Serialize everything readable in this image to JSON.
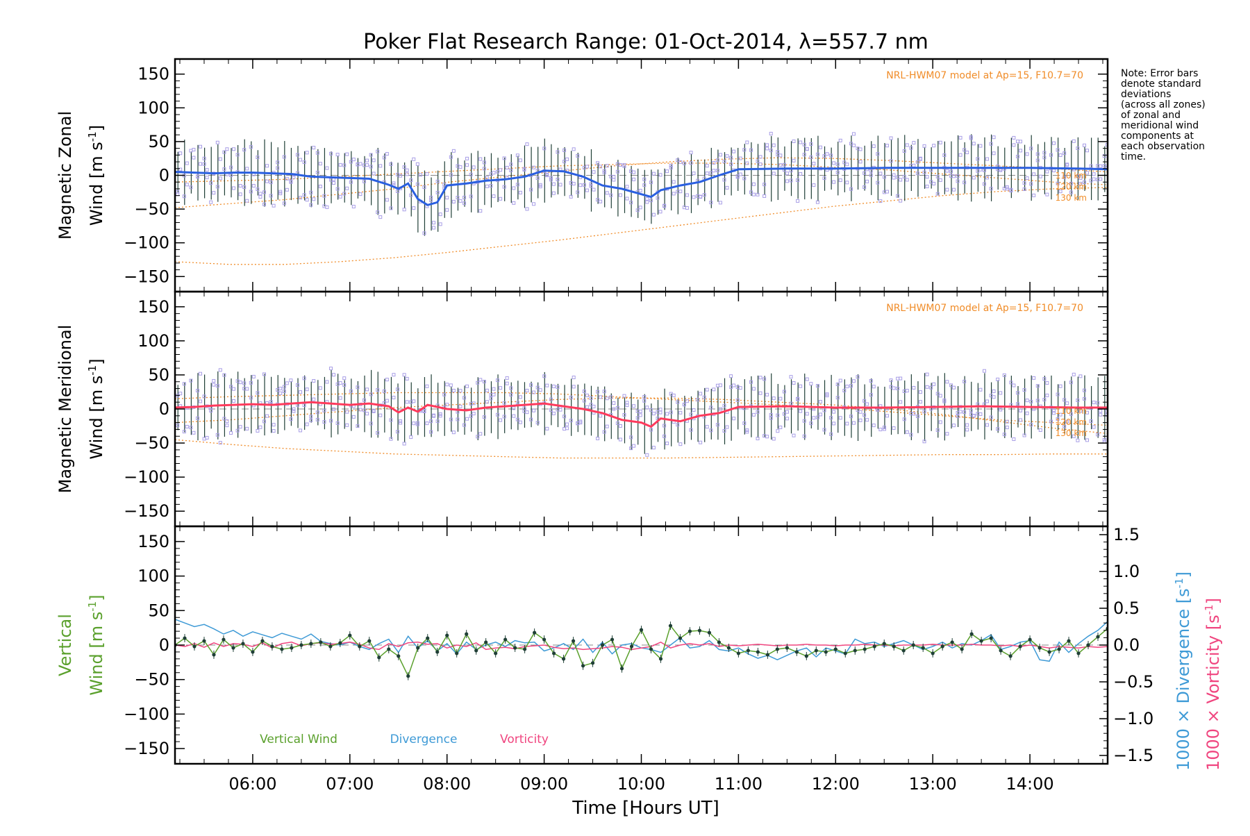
{
  "title": "Poker Flat Research Range: 01-Oct-2014, λ=557.7 nm",
  "note": [
    "Note: Error bars",
    "denote standard",
    "deviations",
    "(across all zones)",
    "of zonal and",
    "meridional wind",
    "components at",
    "each observation",
    "time."
  ],
  "xaxis": {
    "label": "Time [Hours UT]",
    "ticks": [
      "06:00",
      "07:00",
      "08:00",
      "09:00",
      "10:00",
      "11:00",
      "12:00",
      "13:00",
      "14:00"
    ],
    "range_hours": [
      5.2,
      14.8
    ]
  },
  "colors": {
    "zonal": "#2a5fe0",
    "meridional": "#ff3a5c",
    "vertical": "#5aa02c",
    "divergence": "#3e9ad6",
    "vorticity": "#f0457f",
    "model": "#f08c28",
    "zone_points": "#a89ee6"
  },
  "panels": {
    "zonal": {
      "ylabel_line1": "Magnetic Zonal",
      "ylabel_line2": "Wind [m s",
      "ylabel_sup": "-1",
      "ylabel_close": "]",
      "model_label": "NRL-HWM07 model at Ap=15, F10.7=70",
      "altitudes": [
        "110 km",
        "120 km",
        "130 km"
      ]
    },
    "meridional": {
      "ylabel_line1": "Magnetic Meridional",
      "ylabel_line2": "Wind [m s",
      "ylabel_sup": "-1",
      "ylabel_close": "]",
      "model_label": "NRL-HWM07 model at Ap=15, F10.7=70",
      "altitudes": [
        "110 km",
        "120 km",
        "130 km"
      ]
    },
    "vertical": {
      "ylabel_line1": "Vertical",
      "ylabel_line2": "Wind [m s",
      "ylabel_sup": "-1",
      "ylabel_close": "]",
      "right_label_div": "1000 × Divergence [s",
      "right_label_vort": "1000 × Vorticity [s",
      "right_sup": "-1",
      "right_close": "]",
      "right_ticks": [
        "1.5",
        "1.0",
        "0.5",
        "0.0",
        "−0.5",
        "−1.0",
        "−1.5"
      ],
      "legend": [
        "Vertical Wind",
        "Divergence",
        "Vorticity"
      ]
    }
  },
  "yticks": [
    "150",
    "100",
    "50",
    "0",
    "−50",
    "−100",
    "−150"
  ],
  "chart_data": [
    {
      "type": "line",
      "name": "zonal",
      "x_hours": [
        5.2,
        5.4,
        5.6,
        5.8,
        6.0,
        6.2,
        6.4,
        6.6,
        6.8,
        7.0,
        7.2,
        7.4,
        7.5,
        7.6,
        7.7,
        7.8,
        7.9,
        8.0,
        8.2,
        8.4,
        8.6,
        8.8,
        9.0,
        9.2,
        9.4,
        9.6,
        9.8,
        10.0,
        10.1,
        10.2,
        10.4,
        10.6,
        10.8,
        11.0,
        11.5,
        12.0,
        12.5,
        13.0,
        13.5,
        14.0,
        14.5,
        14.8
      ],
      "y": [
        5,
        4,
        3,
        4,
        4,
        3,
        2,
        -2,
        -3,
        -4,
        -5,
        -14,
        -20,
        -12,
        -35,
        -44,
        -40,
        -15,
        -12,
        -8,
        -6,
        -2,
        7,
        6,
        -2,
        -15,
        -20,
        -28,
        -32,
        -22,
        -15,
        -10,
        0,
        9,
        10,
        10,
        11,
        11,
        11,
        11,
        10,
        9
      ],
      "ylim": [
        -160,
        160
      ],
      "model_110km": [
        -48,
        -42,
        -36,
        -28,
        -20,
        -10,
        -2,
        6,
        14,
        20,
        24,
        26,
        25,
        22,
        18,
        14,
        10,
        5
      ],
      "model_120km": [
        -10,
        -8,
        -6,
        -2,
        2,
        6,
        10,
        14,
        16,
        18,
        18,
        16,
        12,
        8,
        2,
        -4,
        -10,
        -14
      ],
      "model_130km": [
        -128,
        -132,
        -132,
        -128,
        -122,
        -114,
        -105,
        -96,
        -86,
        -76,
        -66,
        -56,
        -46,
        -38,
        -30,
        -24,
        -20,
        -18
      ]
    },
    {
      "type": "line",
      "name": "meridional",
      "x_hours": [
        5.2,
        5.4,
        5.6,
        5.8,
        6.0,
        6.2,
        6.4,
        6.6,
        6.8,
        7.0,
        7.2,
        7.4,
        7.5,
        7.6,
        7.7,
        7.8,
        8.0,
        8.2,
        8.4,
        8.6,
        8.8,
        9.0,
        9.2,
        9.4,
        9.6,
        9.8,
        10.0,
        10.1,
        10.2,
        10.4,
        10.6,
        10.8,
        11.0,
        11.5,
        12.0,
        12.5,
        13.0,
        13.5,
        14.0,
        14.5,
        14.8
      ],
      "y": [
        2,
        3,
        5,
        6,
        7,
        6,
        8,
        10,
        8,
        6,
        8,
        4,
        -5,
        2,
        -4,
        6,
        0,
        -2,
        2,
        4,
        6,
        8,
        4,
        0,
        -6,
        -16,
        -20,
        -26,
        -14,
        -18,
        -10,
        -6,
        3,
        4,
        2,
        2,
        3,
        4,
        3,
        2,
        2
      ],
      "ylim": [
        -160,
        160
      ],
      "model_110km": [
        15,
        18,
        20,
        22,
        24,
        24,
        24,
        22,
        18,
        14,
        10,
        6,
        2,
        -4,
        -10,
        -16,
        -20,
        -24
      ],
      "model_120km": [
        -20,
        -16,
        -10,
        -4,
        2,
        6,
        10,
        14,
        16,
        16,
        14,
        10,
        6,
        0,
        -8,
        -18,
        -28,
        -36
      ],
      "model_130km": [
        -45,
        -52,
        -58,
        -62,
        -66,
        -68,
        -70,
        -72,
        -72,
        -72,
        -71,
        -70,
        -69,
        -68,
        -67,
        -67,
        -66,
        -66
      ]
    },
    {
      "type": "line",
      "name": "vertical",
      "x_hours": [
        5.2,
        5.3,
        5.4,
        5.5,
        5.6,
        5.7,
        5.8,
        5.9,
        6.0,
        6.1,
        6.2,
        6.3,
        6.4,
        6.5,
        6.6,
        6.7,
        6.8,
        6.9,
        7.0,
        7.1,
        7.2,
        7.3,
        7.4,
        7.5,
        7.6,
        7.7,
        7.8,
        7.9,
        8.0,
        8.1,
        8.2,
        8.3,
        8.4,
        8.5,
        8.6,
        8.7,
        8.8,
        8.9,
        9.0,
        9.1,
        9.2,
        9.3,
        9.4,
        9.5,
        9.6,
        9.7,
        9.8,
        9.9,
        10.0,
        10.1,
        10.2,
        10.3,
        10.4,
        10.5,
        10.6,
        10.7,
        10.8,
        10.9,
        11.0,
        11.1,
        11.2,
        11.3,
        11.4,
        11.5,
        11.6,
        11.7,
        11.8,
        11.9,
        12.0,
        12.1,
        12.2,
        12.3,
        12.4,
        12.5,
        12.6,
        12.7,
        12.8,
        12.9,
        13.0,
        13.1,
        13.2,
        13.3,
        13.4,
        13.5,
        13.6,
        13.7,
        13.8,
        13.9,
        14.0,
        14.1,
        14.2,
        14.3,
        14.4,
        14.5,
        14.6,
        14.7,
        14.8
      ],
      "y": [
        0,
        10,
        -2,
        6,
        -14,
        8,
        -4,
        2,
        -10,
        6,
        -2,
        -6,
        -4,
        0,
        2,
        4,
        -2,
        3,
        14,
        -2,
        6,
        -18,
        -6,
        -16,
        -45,
        -4,
        10,
        -10,
        14,
        -12,
        16,
        -8,
        4,
        -12,
        8,
        -4,
        -6,
        18,
        8,
        -12,
        -20,
        6,
        -30,
        -26,
        0,
        8,
        -34,
        -2,
        22,
        -6,
        -20,
        28,
        10,
        20,
        21,
        18,
        4,
        -4,
        -12,
        -8,
        -10,
        -14,
        -6,
        -4,
        -10,
        -16,
        -8,
        -10,
        -6,
        -12,
        -8,
        -6,
        -2,
        2,
        -2,
        -8,
        0,
        -4,
        -12,
        -2,
        4,
        -6,
        16,
        6,
        10,
        -8,
        -16,
        -2,
        8,
        -4,
        -10,
        -6,
        6,
        -12,
        0,
        12,
        24
      ],
      "ylim": [
        -160,
        160
      ],
      "divergence": [
        0.35,
        0.3,
        0.25,
        0.28,
        0.22,
        0.15,
        0.2,
        0.12,
        0.18,
        0.14,
        0.1,
        0.16,
        0.12,
        0.08,
        0.15,
        0.05,
        0.02,
        0.0,
        0.04,
        -0.02,
        -0.06,
        0.02,
        0.08,
        -0.1,
        0.12,
        -0.04,
        0.06,
        -0.08,
        0.02,
        -0.12,
        0.04,
        -0.06,
        0.0,
        0.04,
        -0.02,
        0.06,
        0.03,
        0.04,
        -0.08,
        -0.04,
        0.02,
        -0.06,
        0.08,
        -0.1,
        0.04,
        -0.12,
        0.0,
        0.02,
        -0.04,
        -0.06,
        -0.1,
        0.0,
        0.1,
        -0.04,
        -0.02,
        0.06,
        -0.06,
        -0.08,
        -0.04,
        -0.12,
        -0.18,
        -0.14,
        -0.2,
        -0.14,
        -0.08,
        -0.04,
        -0.16,
        -0.04,
        -0.08,
        -0.12,
        0.08,
        0.02,
        0.04,
        -0.02,
        0.02,
        0.06,
        0.0,
        -0.06,
        -0.02,
        0.04,
        -0.04,
        0.02,
        0.0,
        0.06,
        0.14,
        -0.06,
        -0.02,
        0.04,
        0.06,
        -0.2,
        -0.22,
        0.04,
        -0.1,
        0.02,
        0.12,
        0.2,
        0.32
      ],
      "vorticity": [
        0.0,
        -0.02,
        0.02,
        -0.03,
        0.03,
        -0.02,
        0.02,
        0.01,
        -0.02,
        0.03,
        -0.04,
        0.02,
        0.04,
        -0.01,
        0.02,
        0.03,
        0.01,
        0.02,
        0.04,
        0.01,
        -0.04,
        -0.06,
        0.02,
        -0.02,
        0.03,
        0.04,
        0.01,
        0.02,
        -0.04,
        0.0,
        -0.02,
        0.03,
        -0.06,
        -0.04,
        -0.03,
        -0.05,
        -0.02,
        -0.01,
        0.0,
        -0.03,
        -0.05,
        -0.04,
        -0.06,
        -0.05,
        -0.04,
        -0.02,
        -0.03,
        -0.06,
        -0.04,
        -0.02,
        0.04,
        -0.04,
        0.0,
        0.02,
        0.0,
        0.02,
        -0.02,
        0.0,
        -0.01,
        0.0,
        0.01,
        0.0,
        -0.01,
        0.0,
        0.0,
        0.01,
        0.0,
        0.0,
        -0.01,
        0.0,
        0.0,
        0.01,
        0.0,
        0.0,
        -0.01,
        0.0,
        0.0,
        0.0,
        0.01,
        0.0,
        0.0,
        0.0,
        0.01,
        0.0,
        0.0,
        -0.01,
        0.0,
        -0.02,
        0.0,
        -0.02,
        -0.04,
        -0.02,
        -0.03,
        -0.04,
        -0.02,
        -0.03,
        -0.02
      ],
      "right_ylim": [
        -1.5,
        1.5
      ]
    }
  ]
}
